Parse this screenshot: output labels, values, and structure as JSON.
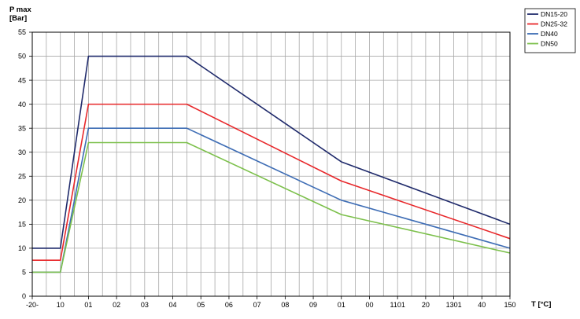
{
  "chart_data": {
    "type": "line",
    "title": "",
    "ylabel_line1": "P max",
    "ylabel_line2": "[Bar]",
    "xlabel": "T [°C]",
    "ylim": [
      0,
      55
    ],
    "yticks": [
      0,
      5,
      10,
      15,
      20,
      25,
      30,
      35,
      40,
      45,
      50,
      55
    ],
    "x_tick_labels": [
      "-20-",
      "10",
      "01",
      "02",
      "03",
      "04",
      "05",
      "06",
      "07",
      "08",
      "09",
      "01",
      "00",
      "1101",
      "20",
      "1301",
      "40",
      "150"
    ],
    "x_categories": 18,
    "grid": true,
    "legend_position": "top-right",
    "series": [
      {
        "name": "DN15-20",
        "color": "#1f2a6b",
        "points": [
          [
            0,
            10
          ],
          [
            1,
            10
          ],
          [
            2,
            50
          ],
          [
            5.5,
            50
          ],
          [
            11,
            28
          ],
          [
            17,
            15
          ]
        ]
      },
      {
        "name": "DN25-32",
        "color": "#e8272a",
        "points": [
          [
            0,
            7.5
          ],
          [
            1,
            7.5
          ],
          [
            2,
            40
          ],
          [
            5.5,
            40
          ],
          [
            11,
            24
          ],
          [
            17,
            12
          ]
        ]
      },
      {
        "name": "DN40",
        "color": "#3e6db5",
        "points": [
          [
            0,
            5
          ],
          [
            1,
            5
          ],
          [
            2,
            35
          ],
          [
            5.5,
            35
          ],
          [
            11,
            20
          ],
          [
            17,
            10
          ]
        ]
      },
      {
        "name": "DN50",
        "color": "#7cc04b",
        "points": [
          [
            0,
            5
          ],
          [
            1,
            5
          ],
          [
            2,
            32
          ],
          [
            5.5,
            32
          ],
          [
            11,
            17
          ],
          [
            17,
            9
          ]
        ]
      }
    ]
  }
}
